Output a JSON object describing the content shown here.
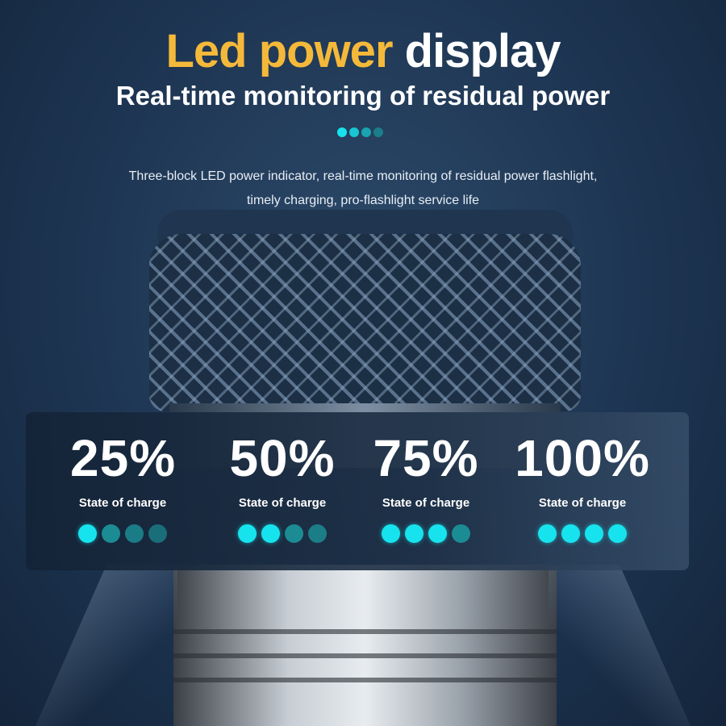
{
  "header": {
    "title_accent": "Led power",
    "title_rest": "display",
    "subtitle": "Real-time monitoring of residual power",
    "description_line1": "Three-block LED power indicator, real-time monitoring of residual power flashlight,",
    "description_line2": "timely charging, pro-flashlight service life"
  },
  "colors": {
    "accent": "#f5b93a",
    "led_on": "#17e3ee",
    "led_off": "#1b8c93"
  },
  "levels": [
    {
      "percent": "25%",
      "label": "State of charge",
      "lit_dots": 1,
      "total_dots": 4
    },
    {
      "percent": "50%",
      "label": "State of charge",
      "lit_dots": 2,
      "total_dots": 4
    },
    {
      "percent": "75%",
      "label": "State of charge",
      "lit_dots": 3,
      "total_dots": 4
    },
    {
      "percent": "100%",
      "label": "State of charge",
      "lit_dots": 4,
      "total_dots": 4
    }
  ]
}
